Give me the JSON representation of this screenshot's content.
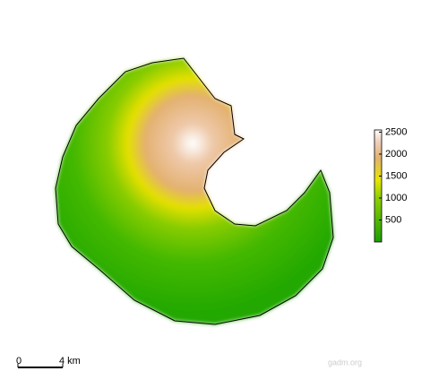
{
  "legend": {
    "range": [
      0,
      2550
    ],
    "ticks": [
      500,
      1000,
      1500,
      2000,
      2500
    ]
  },
  "scale_bar": {
    "start": "0",
    "end": "4 km"
  },
  "source": "gadm.org"
}
